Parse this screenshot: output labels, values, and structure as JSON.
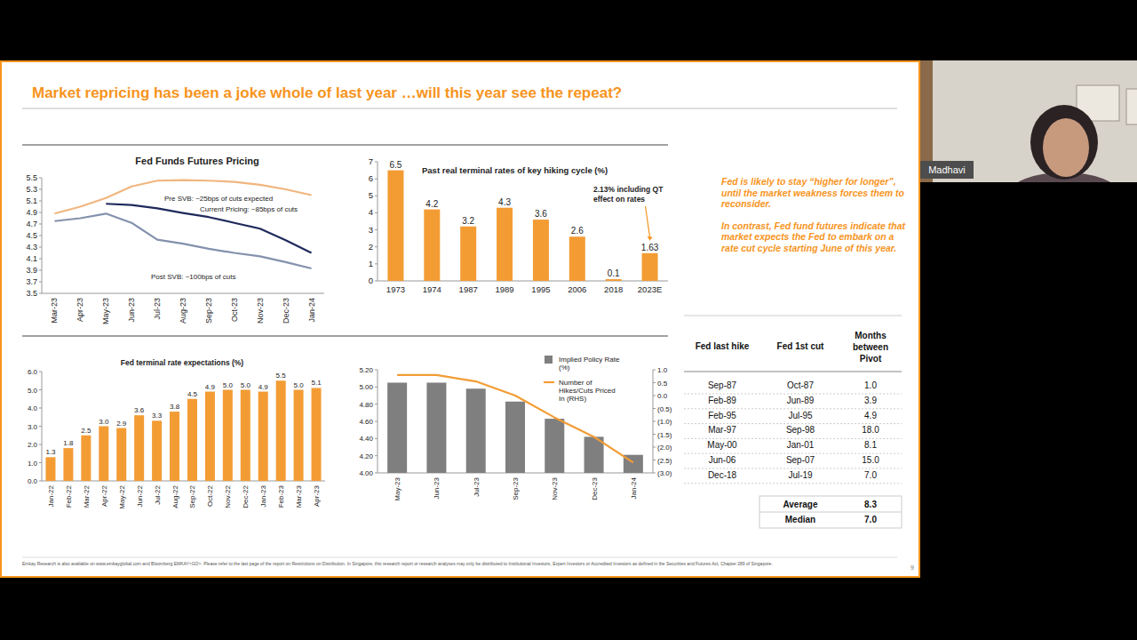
{
  "slide": {
    "title": "Market repricing has been a joke whole of last year …will this year see the repeat?",
    "notes": [
      "Fed is likely to stay “higher for longer”, until the market weakness forces them to reconsider.",
      "In contrast, Fed fund futures indicate that market expects the Fed to embark on a rate cut cycle starting June of this year."
    ],
    "footnote": "Emkay Research is also available on www.emkayglobal.com and Bloomberg EMKAY<GO>. Please refer to the last page of the report on Restrictions on Distribution. In Singapore, this research report or research analyses may only be distributed to Institutional Investors, Expert Investors or Accredited Investors as defined in the Securities and Futures Act, Chapter 289 of Singapore.",
    "page": 9
  },
  "presenter": {
    "name": "Madhavi"
  },
  "chart_data": [
    {
      "type": "line",
      "title": "Fed Funds Futures Pricing",
      "categories": [
        "Mar-23",
        "Apr-23",
        "May-23",
        "Jun-23",
        "Jul-23",
        "Aug-23",
        "Sep-23",
        "Oct-23",
        "Nov-23",
        "Dec-23",
        "Jan-24"
      ],
      "series": [
        {
          "name": "Pre SVB: ~25bps of cuts expected",
          "color": "#f0b67f",
          "values": [
            4.88,
            5.0,
            5.15,
            5.35,
            5.45,
            5.46,
            5.45,
            5.43,
            5.38,
            5.3,
            5.2
          ]
        },
        {
          "name": "Current Pricing: ~85bps of cuts",
          "color": "#1f2a5c",
          "values": [
            null,
            null,
            5.05,
            5.03,
            4.97,
            4.89,
            4.82,
            4.72,
            4.62,
            4.42,
            4.2
          ]
        },
        {
          "name": "Post SVB: ~100bps of cuts",
          "color": "#8391ad",
          "values": [
            4.75,
            4.8,
            4.88,
            4.72,
            4.43,
            4.36,
            4.27,
            4.2,
            4.14,
            4.04,
            3.93
          ]
        }
      ],
      "ylim": [
        3.5,
        5.5
      ],
      "yticks": [
        3.5,
        3.7,
        3.9,
        4.1,
        4.3,
        4.5,
        4.7,
        4.9,
        5.1,
        5.3,
        5.5
      ],
      "grid": false
    },
    {
      "type": "bar",
      "title": "Past real terminal rates of key hiking cycle (%)",
      "categories": [
        "1973",
        "1974",
        "1987",
        "1989",
        "1995",
        "2006",
        "2018",
        "2023E"
      ],
      "values": [
        6.5,
        4.2,
        3.2,
        4.3,
        3.6,
        2.6,
        0.1,
        1.63
      ],
      "color": "#f39c34",
      "ylim": [
        0,
        7
      ],
      "yticks": [
        0,
        1,
        2,
        3,
        4,
        5,
        6,
        7
      ],
      "data_labels": true,
      "grid": false,
      "annotation": "2.13% including QT effect on rates"
    },
    {
      "type": "bar",
      "title": "Fed terminal rate expectations (%)",
      "categories": [
        "Jan-22",
        "Feb-22",
        "Mar-22",
        "Apr-22",
        "May-22",
        "Jun-22",
        "Jul-22",
        "Aug-22",
        "Sep-22",
        "Oct-22",
        "Nov-22",
        "Dec-22",
        "Jan-23",
        "Feb-23",
        "Mar-23",
        "Apr-23"
      ],
      "values": [
        1.3,
        1.8,
        2.5,
        3.0,
        2.9,
        3.6,
        3.3,
        3.8,
        4.5,
        4.9,
        5.0,
        5.0,
        4.9,
        5.5,
        5.0,
        5.1
      ],
      "value_labels": [
        "1.3",
        "1.8",
        "2.5",
        "3.0",
        "2.9",
        "3.6",
        "3.3",
        "3.8",
        "4.5",
        "4.9",
        "5.0",
        "5.0",
        "4.9",
        "5.5",
        "5.0",
        "5.1"
      ],
      "color": "#f39c34",
      "ylim": [
        0,
        6
      ],
      "yticks": [
        {
          "value": 0,
          "label": "0.0"
        },
        {
          "value": 1,
          "label": "1.0"
        },
        {
          "value": 2,
          "label": "2.0"
        },
        {
          "value": 3,
          "label": "3.0"
        },
        {
          "value": 4,
          "label": "4.0"
        },
        {
          "value": 5,
          "label": "5.0"
        },
        {
          "value": 6,
          "label": "6.0"
        }
      ],
      "data_labels": true,
      "grid": false
    },
    {
      "type": "bar",
      "categories": [
        "May-23",
        "Jun-23",
        "Jul-23",
        "Sep-23",
        "Nov-23",
        "Dec-23",
        "Jan-24"
      ],
      "series": [
        {
          "name": "Implied Policy Rate (%)",
          "type": "bar",
          "color": "#7f7f7f",
          "values": [
            5.05,
            5.05,
            4.98,
            4.83,
            4.63,
            4.42,
            4.21
          ]
        },
        {
          "name": "Number of Hikes/Cuts Priced In (RHS)",
          "type": "line",
          "color": "#f39c34",
          "axis": "y2",
          "values": [
            0.8,
            0.8,
            0.55,
            0.0,
            -0.85,
            -1.6,
            -2.6
          ]
        }
      ],
      "ylim": [
        4.0,
        5.2
      ],
      "yticks": [
        {
          "value": 4,
          "label": "4.00"
        },
        {
          "value": 4.2,
          "label": "4.20"
        },
        {
          "value": 4.4,
          "label": "4.40"
        },
        {
          "value": 4.6,
          "label": "4.60"
        },
        {
          "value": 4.8,
          "label": "4.80"
        },
        {
          "value": 5,
          "label": "5.00"
        },
        {
          "value": 5.2,
          "label": "5.20"
        }
      ],
      "y2lim": [
        -3,
        1
      ],
      "y2ticks": [
        {
          "value": 1,
          "label": "1.0"
        },
        {
          "value": 0.5,
          "label": "0.5"
        },
        {
          "value": 0,
          "label": "0.0"
        },
        {
          "value": -0.5,
          "label": "(0.5)"
        },
        {
          "value": -1,
          "label": "(1.0)"
        },
        {
          "value": -1.5,
          "label": "(1.5)"
        },
        {
          "value": -2,
          "label": "(2.0)"
        },
        {
          "value": -2.5,
          "label": "(2.5)"
        },
        {
          "value": -3,
          "label": "(3.0)"
        }
      ],
      "legend": "top-right",
      "grid": false
    }
  ],
  "table": {
    "columns": [
      "Fed last hike",
      "Fed 1st cut",
      "Months between Pivot"
    ],
    "rows": [
      [
        "Sep-87",
        "Oct-87",
        "1.0"
      ],
      [
        "Feb-89",
        "Jun-89",
        "3.9"
      ],
      [
        "Feb-95",
        "Jul-95",
        "4.9"
      ],
      [
        "Mar-97",
        "Sep-98",
        "18.0"
      ],
      [
        "May-00",
        "Jan-01",
        "8.1"
      ],
      [
        "Jun-06",
        "Sep-07",
        "15.0"
      ],
      [
        "Dec-18",
        "Jul-19",
        "7.0"
      ]
    ],
    "summary": [
      [
        "Average",
        "8.3"
      ],
      [
        "Median",
        "7.0"
      ]
    ]
  }
}
